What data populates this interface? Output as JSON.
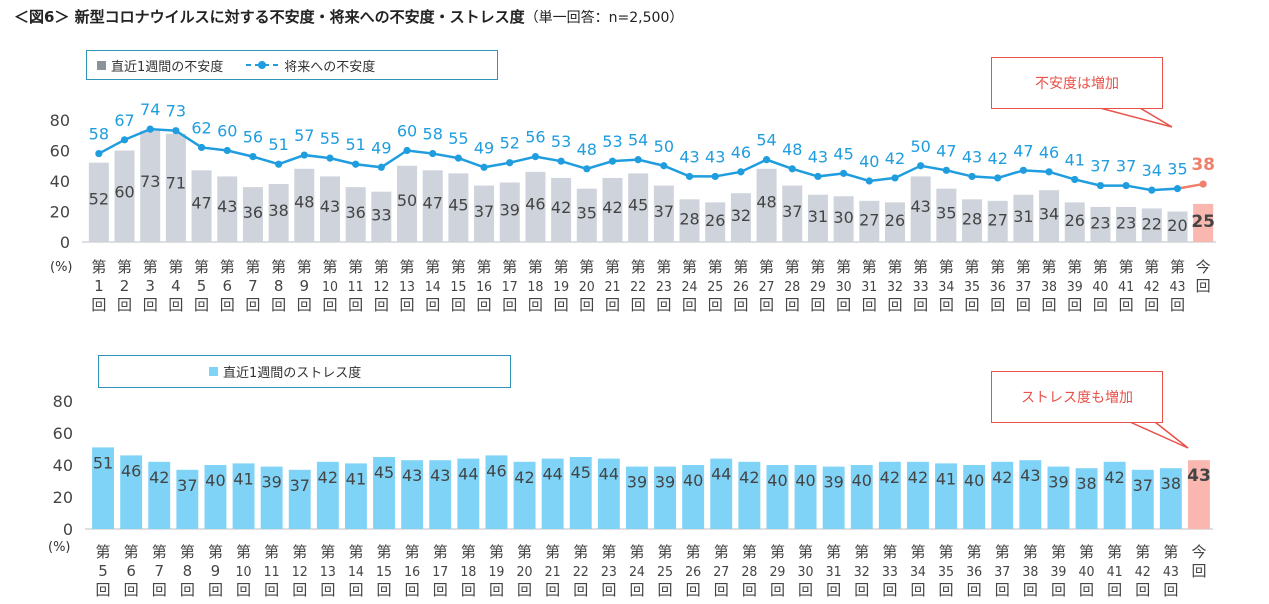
{
  "title": "＜図6＞ 新型コロナウイルスに対する不安度・将来への不安度・ストレス度",
  "subtitle": "（単一回答：n=2,500）",
  "colors": {
    "bar_gray": "#cfd4dc",
    "bar_blue": "#7fd3f7",
    "bar_highlight": "#f9b7b0",
    "line_blue": "#1f9ddf",
    "line_orange": "#f07f6b",
    "label_blue": "#1f9ddf",
    "label_orange": "#f07f6b",
    "legend_border": "#2e94b8",
    "callout_red": "#e8524a"
  },
  "top_legend": {
    "bar_label": "直近1週間の不安度",
    "line_label": "将来への不安度"
  },
  "top_callout": "不安度は増加",
  "bottom_legend": {
    "bar_label": "直近1週間のストレス度"
  },
  "bottom_callout": "ストレス度も増加",
  "unit_label": "(%)",
  "chart_data": [
    {
      "type": "bar",
      "title": "直近1週間の不安度 / 将来への不安度",
      "ylim": [
        0,
        80
      ],
      "yticks": [
        0,
        20,
        40,
        60,
        80
      ],
      "categories": [
        "第1回",
        "第2回",
        "第3回",
        "第4回",
        "第5回",
        "第6回",
        "第7回",
        "第8回",
        "第9回",
        "第10回",
        "第11回",
        "第12回",
        "第13回",
        "第14回",
        "第15回",
        "第16回",
        "第17回",
        "第18回",
        "第19回",
        "第20回",
        "第21回",
        "第22回",
        "第23回",
        "第24回",
        "第25回",
        "第26回",
        "第27回",
        "第28回",
        "第29回",
        "第30回",
        "第31回",
        "第32回",
        "第33回",
        "第34回",
        "第35回",
        "第36回",
        "第37回",
        "第38回",
        "第39回",
        "第40回",
        "第41回",
        "第42回",
        "第43回",
        "今回"
      ],
      "series": [
        {
          "name": "直近1週間の不安度",
          "kind": "bar",
          "values": [
            52,
            60,
            73,
            71,
            47,
            43,
            36,
            38,
            48,
            43,
            36,
            33,
            50,
            47,
            45,
            37,
            39,
            46,
            42,
            35,
            42,
            45,
            37,
            28,
            26,
            32,
            48,
            37,
            31,
            30,
            27,
            26,
            43,
            35,
            28,
            27,
            31,
            34,
            26,
            23,
            23,
            22,
            20,
            25
          ]
        },
        {
          "name": "将来への不安度",
          "kind": "line",
          "values": [
            58,
            67,
            74,
            73,
            62,
            60,
            56,
            51,
            57,
            55,
            51,
            49,
            60,
            58,
            55,
            49,
            52,
            56,
            53,
            48,
            53,
            54,
            50,
            43,
            43,
            46,
            54,
            48,
            43,
            45,
            40,
            42,
            50,
            47,
            43,
            42,
            47,
            46,
            41,
            37,
            37,
            34,
            35,
            38
          ]
        }
      ]
    },
    {
      "type": "bar",
      "title": "直近1週間のストレス度",
      "ylim": [
        0,
        80
      ],
      "yticks": [
        0,
        20,
        40,
        60,
        80
      ],
      "categories": [
        "第5回",
        "第6回",
        "第7回",
        "第8回",
        "第9回",
        "第10回",
        "第11回",
        "第12回",
        "第13回",
        "第14回",
        "第15回",
        "第16回",
        "第17回",
        "第18回",
        "第19回",
        "第20回",
        "第21回",
        "第22回",
        "第23回",
        "第24回",
        "第25回",
        "第26回",
        "第27回",
        "第28回",
        "第29回",
        "第30回",
        "第31回",
        "第32回",
        "第33回",
        "第34回",
        "第35回",
        "第36回",
        "第37回",
        "第38回",
        "第39回",
        "第40回",
        "第41回",
        "第42回",
        "第43回",
        "今回"
      ],
      "series": [
        {
          "name": "直近1週間のストレス度",
          "kind": "bar",
          "values": [
            51,
            46,
            42,
            37,
            40,
            41,
            39,
            37,
            42,
            41,
            45,
            43,
            43,
            44,
            46,
            42,
            44,
            45,
            44,
            39,
            39,
            40,
            44,
            42,
            40,
            40,
            39,
            40,
            42,
            42,
            41,
            40,
            42,
            43,
            39,
            38,
            42,
            37,
            38,
            43
          ]
        }
      ]
    }
  ]
}
